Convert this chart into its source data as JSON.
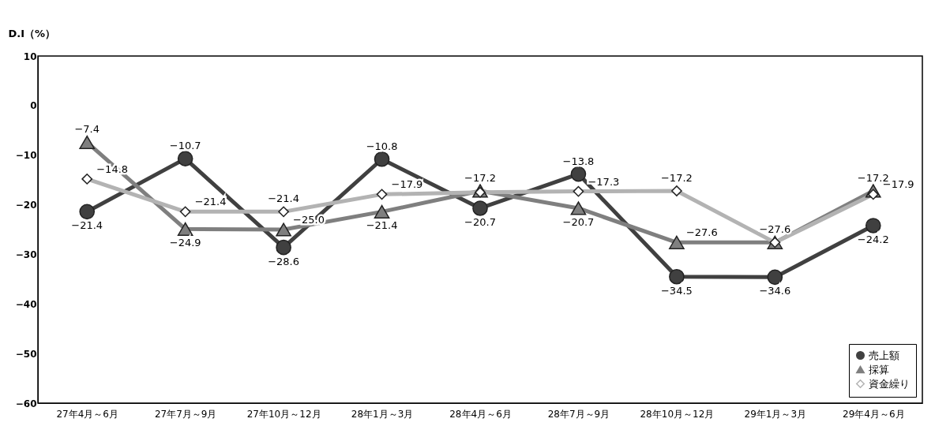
{
  "chart_data": {
    "type": "line",
    "ylabel": "D.I（%）",
    "categories": [
      "27年4月～6月",
      "27年7月～9月",
      "27年10月～12月",
      "28年1月～3月",
      "28年4月～6月",
      "28年7月～9月",
      "28年10月～12月",
      "29年1月～3月",
      "29年4月～6月"
    ],
    "ylim": [
      -60,
      10
    ],
    "yticks": [
      -60,
      -50,
      -40,
      -30,
      -20,
      -10,
      0,
      10
    ],
    "grid": false,
    "legend": "bottom right",
    "line_style": "solid",
    "series": [
      {
        "name": "売上額",
        "color": "#404040",
        "marker": "circle",
        "values": [
          -21.4,
          -10.7,
          -28.6,
          -10.8,
          -20.7,
          -13.8,
          -34.5,
          -34.6,
          -24.2
        ],
        "value_labels": [
          "−21.4",
          "−10.7",
          "−28.6",
          "−10.8",
          "−20.7",
          "−13.8",
          "−34.5",
          "−34.6",
          "−24.2"
        ]
      },
      {
        "name": "採算",
        "color": "#7f7f7f",
        "marker": "triangle",
        "values": [
          -7.4,
          -24.9,
          -25.0,
          -21.4,
          -17.2,
          -20.7,
          -27.6,
          -27.6,
          -17.2
        ],
        "value_labels": [
          "−7.4",
          "−24.9",
          "−25.0",
          "−21.4",
          "−17.2",
          "−20.7",
          "−27.6",
          null,
          "−17.2"
        ]
      },
      {
        "name": "資金繰り",
        "color": "#b3b3b3",
        "marker": "diamond",
        "values": [
          -14.8,
          -21.4,
          -21.4,
          -17.9,
          -17.5,
          -17.3,
          -17.2,
          -27.6,
          -17.9
        ],
        "value_labels": [
          "−14.8",
          "−21.4",
          "−21.4",
          "−17.9",
          null,
          "−17.3",
          "−17.2",
          "−27.6",
          "−17.9"
        ]
      }
    ]
  }
}
